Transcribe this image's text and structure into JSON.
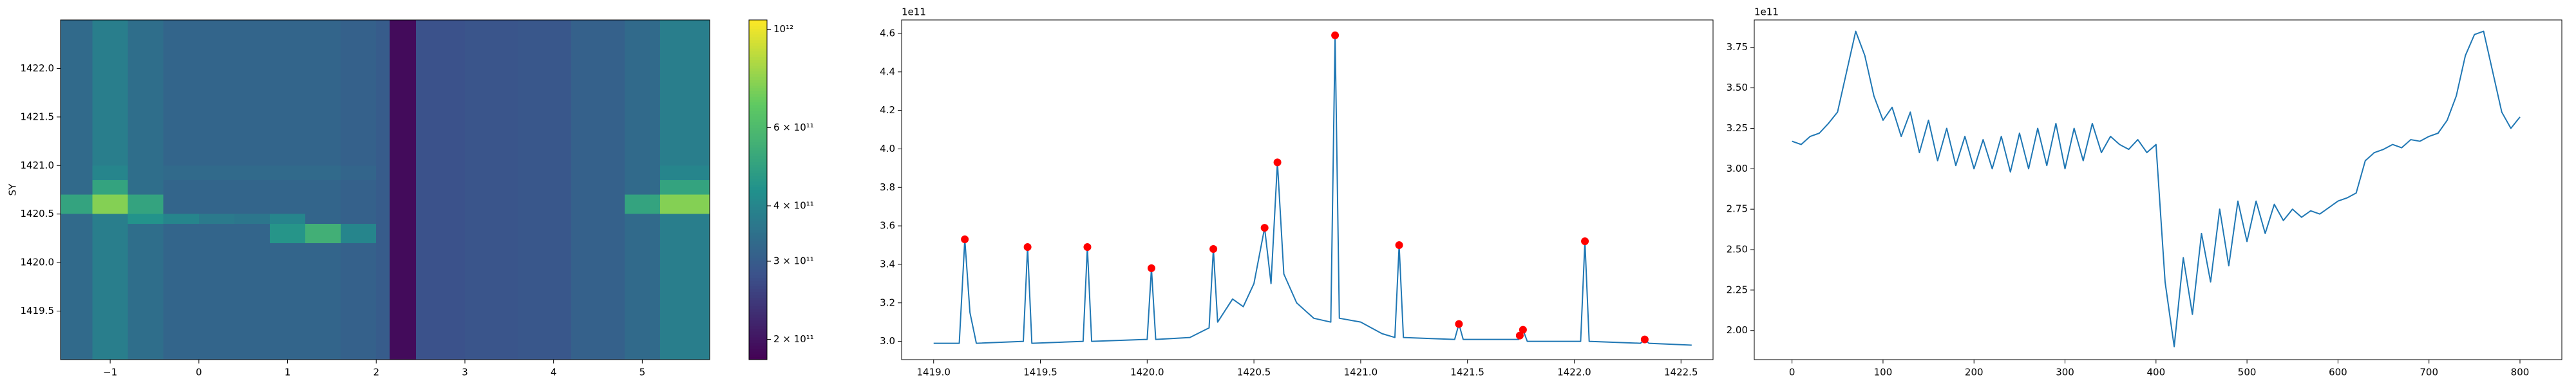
{
  "chart_data": [
    {
      "type": "heatmap",
      "ylabel": "SY",
      "x_edges": [
        -1.56,
        -1.2,
        -0.8,
        -0.4,
        0,
        0.4,
        0.8,
        1.2,
        1.6,
        2.0,
        2.15,
        2.45,
        3.0,
        3.6,
        4.2,
        4.8,
        5.2,
        5.76
      ],
      "y_edges": [
        1419.0,
        1419.3,
        1419.6,
        1419.9,
        1420.2,
        1420.4,
        1420.5,
        1420.7,
        1420.85,
        1421.0,
        1421.3,
        1421.7,
        1422.1,
        1422.5
      ],
      "z": [
        [
          330000000000.0,
          380000000000.0,
          340000000000.0,
          320000000000.0,
          320000000000.0,
          320000000000.0,
          320000000000.0,
          320000000000.0,
          310000000000.0,
          300000000000.0,
          190000000000.0,
          280000000000.0,
          285000000000.0,
          290000000000.0,
          310000000000.0,
          330000000000.0,
          380000000000.0
        ],
        [
          330000000000.0,
          380000000000.0,
          340000000000.0,
          320000000000.0,
          320000000000.0,
          320000000000.0,
          320000000000.0,
          320000000000.0,
          310000000000.0,
          300000000000.0,
          190000000000.0,
          280000000000.0,
          285000000000.0,
          290000000000.0,
          310000000000.0,
          330000000000.0,
          380000000000.0
        ],
        [
          330000000000.0,
          380000000000.0,
          340000000000.0,
          320000000000.0,
          320000000000.0,
          320000000000.0,
          320000000000.0,
          320000000000.0,
          310000000000.0,
          300000000000.0,
          190000000000.0,
          280000000000.0,
          285000000000.0,
          290000000000.0,
          310000000000.0,
          330000000000.0,
          380000000000.0
        ],
        [
          330000000000.0,
          380000000000.0,
          340000000000.0,
          320000000000.0,
          320000000000.0,
          320000000000.0,
          320000000000.0,
          320000000000.0,
          310000000000.0,
          300000000000.0,
          190000000000.0,
          280000000000.0,
          285000000000.0,
          290000000000.0,
          310000000000.0,
          330000000000.0,
          380000000000.0
        ],
        [
          330000000000.0,
          380000000000.0,
          340000000000.0,
          320000000000.0,
          320000000000.0,
          320000000000.0,
          450000000000.0,
          550000000000.0,
          400000000000.0,
          300000000000.0,
          190000000000.0,
          280000000000.0,
          285000000000.0,
          290000000000.0,
          310000000000.0,
          330000000000.0,
          380000000000.0
        ],
        [
          330000000000.0,
          380000000000.0,
          440000000000.0,
          400000000000.0,
          370000000000.0,
          360000000000.0,
          400000000000.0,
          320000000000.0,
          310000000000.0,
          300000000000.0,
          190000000000.0,
          280000000000.0,
          285000000000.0,
          290000000000.0,
          310000000000.0,
          330000000000.0,
          380000000000.0
        ],
        [
          500000000000.0,
          750000000000.0,
          500000000000.0,
          320000000000.0,
          320000000000.0,
          320000000000.0,
          320000000000.0,
          320000000000.0,
          310000000000.0,
          300000000000.0,
          190000000000.0,
          280000000000.0,
          285000000000.0,
          290000000000.0,
          310000000000.0,
          500000000000.0,
          750000000000.0
        ],
        [
          330000000000.0,
          500000000000.0,
          340000000000.0,
          320000000000.0,
          320000000000.0,
          320000000000.0,
          320000000000.0,
          320000000000.0,
          310000000000.0,
          300000000000.0,
          190000000000.0,
          280000000000.0,
          285000000000.0,
          290000000000.0,
          310000000000.0,
          330000000000.0,
          500000000000.0
        ],
        [
          330000000000.0,
          400000000000.0,
          340000000000.0,
          330000000000.0,
          330000000000.0,
          330000000000.0,
          330000000000.0,
          330000000000.0,
          320000000000.0,
          300000000000.0,
          190000000000.0,
          280000000000.0,
          285000000000.0,
          290000000000.0,
          310000000000.0,
          330000000000.0,
          400000000000.0
        ],
        [
          330000000000.0,
          380000000000.0,
          340000000000.0,
          320000000000.0,
          320000000000.0,
          320000000000.0,
          320000000000.0,
          320000000000.0,
          310000000000.0,
          300000000000.0,
          190000000000.0,
          280000000000.0,
          285000000000.0,
          290000000000.0,
          310000000000.0,
          330000000000.0,
          380000000000.0
        ],
        [
          330000000000.0,
          380000000000.0,
          340000000000.0,
          320000000000.0,
          320000000000.0,
          320000000000.0,
          320000000000.0,
          320000000000.0,
          310000000000.0,
          300000000000.0,
          190000000000.0,
          280000000000.0,
          285000000000.0,
          290000000000.0,
          310000000000.0,
          330000000000.0,
          380000000000.0
        ],
        [
          330000000000.0,
          380000000000.0,
          340000000000.0,
          320000000000.0,
          320000000000.0,
          320000000000.0,
          320000000000.0,
          320000000000.0,
          310000000000.0,
          300000000000.0,
          190000000000.0,
          280000000000.0,
          285000000000.0,
          290000000000.0,
          310000000000.0,
          330000000000.0,
          380000000000.0
        ],
        [
          330000000000.0,
          380000000000.0,
          340000000000.0,
          320000000000.0,
          320000000000.0,
          320000000000.0,
          320000000000.0,
          320000000000.0,
          310000000000.0,
          300000000000.0,
          190000000000.0,
          280000000000.0,
          285000000000.0,
          290000000000.0,
          310000000000.0,
          330000000000.0,
          380000000000.0
        ]
      ],
      "colormap": "viridis",
      "color_scale": "log",
      "clim": [
        180000000000.0,
        1050000000000.0
      ],
      "cticks": [
        {
          "value": 200000000000.0,
          "label": "2 × 10¹¹"
        },
        {
          "value": 300000000000.0,
          "label": "3 × 10¹¹"
        },
        {
          "value": 400000000000.0,
          "label": "4 × 10¹¹"
        },
        {
          "value": 600000000000.0,
          "label": "6 × 10¹¹"
        },
        {
          "value": 1000000000000.0,
          "label": "10¹²"
        }
      ],
      "xlim": [
        -1.56,
        5.76
      ],
      "ylim": [
        1419.0,
        1422.5
      ],
      "xticks": [
        {
          "value": -1,
          "label": "−1"
        },
        0,
        1,
        2,
        3,
        4,
        5
      ],
      "yticks": [
        1419.5,
        {
          "value": 1420,
          "label": "1420.0"
        },
        1420.5,
        {
          "value": 1421,
          "label": "1421.0"
        },
        1421.5,
        {
          "value": 1422,
          "label": "1422.0"
        }
      ]
    },
    {
      "type": "line",
      "color": "#1f77b4",
      "y_offset_label": "1e11",
      "x": [
        1419.0,
        1419.12,
        1419.146,
        1419.17,
        1419.2,
        1419.42,
        1419.44,
        1419.46,
        1419.7,
        1419.72,
        1419.74,
        1420.0,
        1420.02,
        1420.04,
        1420.2,
        1420.29,
        1420.31,
        1420.33,
        1420.4,
        1420.45,
        1420.5,
        1420.55,
        1420.58,
        1420.61,
        1420.64,
        1420.7,
        1420.78,
        1420.86,
        1420.88,
        1420.9,
        1421.0,
        1421.1,
        1421.16,
        1421.18,
        1421.2,
        1421.44,
        1421.46,
        1421.48,
        1421.74,
        1421.745,
        1421.76,
        1421.78,
        1422.03,
        1422.05,
        1422.07,
        1422.31,
        1422.33,
        1422.35,
        1422.55
      ],
      "values": [
        2.99,
        2.99,
        3.53,
        3.15,
        2.99,
        3.0,
        3.49,
        2.99,
        3.0,
        3.49,
        3.0,
        3.01,
        3.38,
        3.01,
        3.02,
        3.07,
        3.48,
        3.1,
        3.22,
        3.18,
        3.3,
        3.59,
        3.3,
        3.93,
        3.35,
        3.2,
        3.12,
        3.1,
        4.59,
        3.12,
        3.1,
        3.04,
        3.02,
        3.5,
        3.02,
        3.01,
        3.09,
        3.01,
        3.01,
        3.03,
        3.06,
        3.0,
        3.0,
        3.52,
        3.0,
        2.99,
        3.01,
        2.99,
        2.98
      ],
      "markers": {
        "color": "#ff0000",
        "x": [
          1419.146,
          1419.44,
          1419.72,
          1420.02,
          1420.31,
          1420.55,
          1420.61,
          1420.88,
          1421.18,
          1421.46,
          1421.745,
          1421.76,
          1422.05,
          1422.33
        ],
        "values": [
          3.53,
          3.49,
          3.49,
          3.38,
          3.48,
          3.59,
          3.93,
          4.59,
          3.5,
          3.09,
          3.03,
          3.06,
          3.52,
          3.01
        ]
      },
      "xlim": [
        1418.85,
        1422.65
      ],
      "ylim": [
        2.905,
        4.67
      ],
      "xticks": [
        {
          "value": 1419,
          "label": "1419.0"
        },
        1419.5,
        {
          "value": 1420,
          "label": "1420.0"
        },
        1420.5,
        {
          "value": 1421,
          "label": "1421.0"
        },
        1421.5,
        {
          "value": 1422,
          "label": "1422.0"
        },
        1422.5
      ],
      "yticks": [
        {
          "value": 3,
          "label": "3.0"
        },
        3.2,
        3.4,
        3.6,
        3.8,
        {
          "value": 4,
          "label": "4.0"
        },
        4.2,
        4.4,
        4.6
      ]
    },
    {
      "type": "line",
      "color": "#1f77b4",
      "y_offset_label": "1e11",
      "x": [
        0,
        10,
        20,
        30,
        40,
        50,
        60,
        70,
        80,
        90,
        100,
        110,
        120,
        130,
        140,
        150,
        160,
        170,
        180,
        190,
        200,
        210,
        220,
        230,
        240,
        250,
        260,
        270,
        280,
        290,
        300,
        310,
        320,
        330,
        340,
        350,
        360,
        370,
        380,
        390,
        400,
        410,
        420,
        430,
        440,
        450,
        460,
        470,
        480,
        490,
        500,
        510,
        520,
        530,
        540,
        550,
        560,
        570,
        580,
        590,
        600,
        610,
        620,
        630,
        640,
        650,
        660,
        670,
        680,
        690,
        700,
        710,
        720,
        730,
        740,
        750,
        760,
        770,
        780,
        790,
        800
      ],
      "values": [
        3.17,
        3.15,
        3.2,
        3.22,
        3.28,
        3.35,
        3.6,
        3.85,
        3.7,
        3.45,
        3.3,
        3.38,
        3.2,
        3.35,
        3.1,
        3.3,
        3.05,
        3.25,
        3.02,
        3.2,
        3.0,
        3.18,
        3.0,
        3.2,
        2.98,
        3.22,
        3.0,
        3.25,
        3.02,
        3.28,
        3.0,
        3.25,
        3.05,
        3.28,
        3.1,
        3.2,
        3.15,
        3.12,
        3.18,
        3.1,
        3.15,
        2.3,
        1.9,
        2.45,
        2.1,
        2.6,
        2.3,
        2.75,
        2.4,
        2.8,
        2.55,
        2.8,
        2.6,
        2.78,
        2.68,
        2.75,
        2.7,
        2.74,
        2.72,
        2.76,
        2.8,
        2.82,
        2.85,
        3.05,
        3.1,
        3.12,
        3.15,
        3.13,
        3.18,
        3.17,
        3.2,
        3.22,
        3.3,
        3.45,
        3.7,
        3.83,
        3.85,
        3.6,
        3.35,
        3.25,
        3.32
      ],
      "xlim": [
        -41.5,
        846
      ],
      "ylim": [
        1.82,
        3.92
      ],
      "xticks": [
        0,
        100,
        200,
        300,
        400,
        500,
        600,
        700,
        800
      ],
      "yticks": [
        {
          "value": 2,
          "label": "2.00"
        },
        2.25,
        {
          "value": 2.5,
          "label": "2.50"
        },
        2.75,
        {
          "value": 3,
          "label": "3.00"
        },
        3.25,
        {
          "value": 3.5,
          "label": "3.50"
        },
        3.75
      ]
    }
  ]
}
